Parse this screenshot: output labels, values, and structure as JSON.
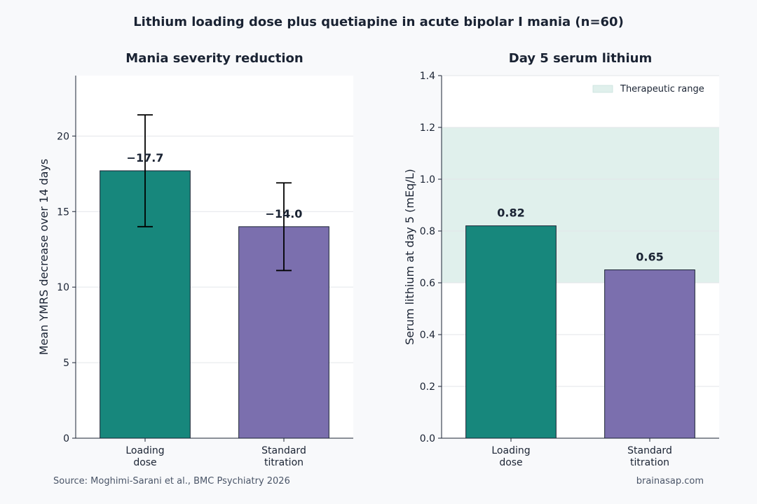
{
  "figure": {
    "title": "Lithium loading dose plus quetiapine in acute bipolar I mania (n=60)",
    "source": "Source: Moghimi-Sarani et al., BMC Psychiatry 2026",
    "credit": "brainasap.com"
  },
  "chart_data": [
    {
      "type": "bar",
      "title": "Mania severity reduction",
      "categories": [
        "Loading\ndose",
        "Standard\ntitration"
      ],
      "values": [
        17.7,
        14.0
      ],
      "error": [
        3.7,
        2.9
      ],
      "data_labels": [
        "−17.7",
        "−14.0"
      ],
      "colors": [
        "#17877c",
        "#7b6fae"
      ],
      "xlabel": "",
      "ylabel": "Mean YMRS decrease over 14 days",
      "ylim": [
        0,
        24
      ],
      "yticks": [
        0,
        5,
        10,
        15,
        20
      ],
      "ytick_labels": [
        "0",
        "5",
        "10",
        "15",
        "20"
      ],
      "grid": true
    },
    {
      "type": "bar",
      "title": "Day 5 serum lithium",
      "categories": [
        "Loading\ndose",
        "Standard\ntitration"
      ],
      "values": [
        0.82,
        0.65
      ],
      "data_labels": [
        "0.82",
        "0.65"
      ],
      "colors": [
        "#17877c",
        "#7b6fae"
      ],
      "xlabel": "",
      "ylabel": "Serum lithium at day 5 (mEq/L)",
      "ylim": [
        0,
        1.4
      ],
      "yticks": [
        0,
        0.2,
        0.4,
        0.6,
        0.8,
        1.0,
        1.2,
        1.4
      ],
      "ytick_labels": [
        "0.0",
        "0.2",
        "0.4",
        "0.6",
        "0.8",
        "1.0",
        "1.2",
        "1.4"
      ],
      "shaded_band": {
        "label": "Therapeutic range",
        "from": 0.6,
        "to": 1.2,
        "color": "#e0f0ec"
      },
      "legend_position": "top-right",
      "grid": true
    }
  ]
}
